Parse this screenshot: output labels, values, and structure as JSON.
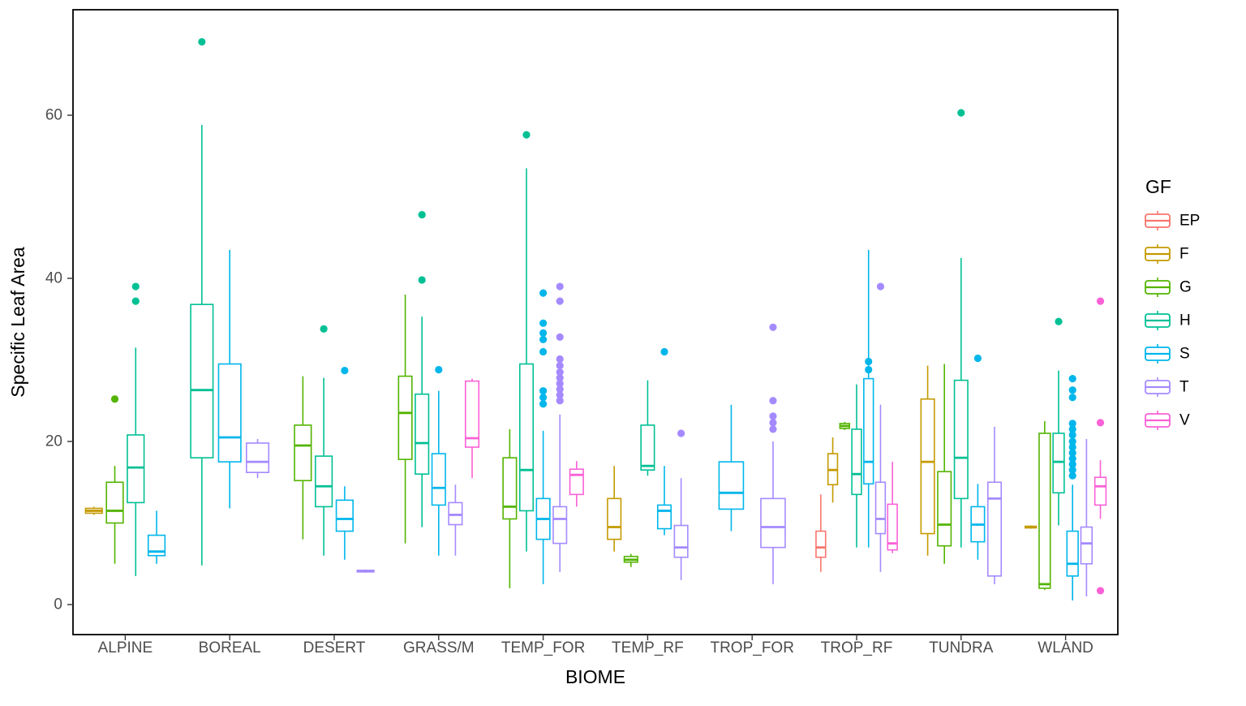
{
  "chart_data": {
    "type": "boxplot",
    "title": "",
    "xlabel": "BIOME",
    "ylabel": "Specific Leaf Area",
    "legend_title": "GF",
    "ylim": [
      -2,
      71
    ],
    "yticks": [
      0,
      20,
      40,
      60
    ],
    "grid": "off",
    "legend_position": "right",
    "categories": [
      "ALPINE",
      "BOREAL",
      "DESERT",
      "GRASS/M",
      "TEMP_FOR",
      "TEMP_RF",
      "TROP_FOR",
      "TROP_RF",
      "TUNDRA",
      "WLAND"
    ],
    "groups": [
      {
        "key": "EP",
        "label": "EP",
        "color": "#F8766D"
      },
      {
        "key": "F",
        "label": "F",
        "color": "#C49A00"
      },
      {
        "key": "G",
        "label": "G",
        "color": "#53B400"
      },
      {
        "key": "H",
        "label": "H",
        "color": "#00C094"
      },
      {
        "key": "S",
        "label": "S",
        "color": "#00B6EB"
      },
      {
        "key": "T",
        "label": "T",
        "color": "#A58AFF"
      },
      {
        "key": "V",
        "label": "V",
        "color": "#FB61D7"
      }
    ],
    "boxes": [
      {
        "biome": "ALPINE",
        "gf": "F",
        "low": 11,
        "q1": 11.2,
        "med": 11.5,
        "q3": 11.8,
        "high": 12,
        "out": []
      },
      {
        "biome": "ALPINE",
        "gf": "G",
        "low": 5,
        "q1": 10,
        "med": 11.5,
        "q3": 15,
        "high": 17,
        "out": [
          25.2
        ]
      },
      {
        "biome": "ALPINE",
        "gf": "H",
        "low": 3.5,
        "q1": 12.5,
        "med": 16.8,
        "q3": 20.8,
        "high": 31.5,
        "out": [
          37.2,
          39
        ]
      },
      {
        "biome": "ALPINE",
        "gf": "S",
        "low": 5,
        "q1": 6,
        "med": 6.5,
        "q3": 8.5,
        "high": 11.5,
        "out": []
      },
      {
        "biome": "BOREAL",
        "gf": "H",
        "low": 4.8,
        "q1": 18,
        "med": 26.3,
        "q3": 36.8,
        "high": 58.8,
        "out": [
          69
        ]
      },
      {
        "biome": "BOREAL",
        "gf": "S",
        "low": 11.8,
        "q1": 17.5,
        "med": 20.5,
        "q3": 29.5,
        "high": 43.5,
        "out": []
      },
      {
        "biome": "BOREAL",
        "gf": "T",
        "low": 15.5,
        "q1": 16.2,
        "med": 17.5,
        "q3": 19.8,
        "high": 20.3,
        "out": []
      },
      {
        "biome": "DESERT",
        "gf": "G",
        "low": 8,
        "q1": 15.2,
        "med": 19.5,
        "q3": 22,
        "high": 28,
        "out": []
      },
      {
        "biome": "DESERT",
        "gf": "H",
        "low": 6,
        "q1": 12,
        "med": 14.5,
        "q3": 18.2,
        "high": 27.8,
        "out": [
          33.8
        ]
      },
      {
        "biome": "DESERT",
        "gf": "S",
        "low": 5.5,
        "q1": 9,
        "med": 10.5,
        "q3": 12.8,
        "high": 14.5,
        "out": [
          28.7
        ]
      },
      {
        "biome": "DESERT",
        "gf": "T",
        "low": 3.9,
        "q1": 4,
        "med": 4.1,
        "q3": 4.2,
        "high": 4.3,
        "out": []
      },
      {
        "biome": "GRASS/M",
        "gf": "G",
        "low": 7.5,
        "q1": 17.8,
        "med": 23.5,
        "q3": 28,
        "high": 38,
        "out": []
      },
      {
        "biome": "GRASS/M",
        "gf": "H",
        "low": 9.5,
        "q1": 16,
        "med": 19.8,
        "q3": 25.8,
        "high": 35.3,
        "out": [
          39.8,
          47.8
        ]
      },
      {
        "biome": "GRASS/M",
        "gf": "S",
        "low": 6,
        "q1": 12.2,
        "med": 14.3,
        "q3": 18.5,
        "high": 26.2,
        "out": [
          28.8
        ]
      },
      {
        "biome": "GRASS/M",
        "gf": "T",
        "low": 6,
        "q1": 9.8,
        "med": 11,
        "q3": 12.5,
        "high": 14.7,
        "out": []
      },
      {
        "biome": "GRASS/M",
        "gf": "V",
        "low": 15.5,
        "q1": 19.3,
        "med": 20.4,
        "q3": 27.4,
        "high": 27.7,
        "out": []
      },
      {
        "biome": "TEMP_FOR",
        "gf": "G",
        "low": 2,
        "q1": 10.5,
        "med": 12,
        "q3": 18,
        "high": 21.5,
        "out": []
      },
      {
        "biome": "TEMP_FOR",
        "gf": "H",
        "low": 6.5,
        "q1": 11.5,
        "med": 16.5,
        "q3": 29.5,
        "high": 53.5,
        "out": [
          57.6
        ]
      },
      {
        "biome": "TEMP_FOR",
        "gf": "S",
        "low": 2.5,
        "q1": 8,
        "med": 10.5,
        "q3": 13,
        "high": 21.3,
        "out": [
          24.6,
          25.4,
          26.2,
          31,
          32.5,
          33.3,
          34.5,
          38.2
        ]
      },
      {
        "biome": "TEMP_FOR",
        "gf": "T",
        "low": 4,
        "q1": 7.5,
        "med": 10.5,
        "q3": 12,
        "high": 23.3,
        "out": [
          25,
          25.7,
          26.4,
          27.1,
          27.8,
          28.5,
          29.3,
          30.1,
          32.8,
          37.2,
          39
        ]
      },
      {
        "biome": "TEMP_FOR",
        "gf": "V",
        "low": 12,
        "q1": 13.5,
        "med": 15.9,
        "q3": 16.6,
        "high": 17.6,
        "out": []
      },
      {
        "biome": "TEMP_RF",
        "gf": "F",
        "low": 6.5,
        "q1": 8,
        "med": 9.5,
        "q3": 13,
        "high": 17,
        "out": []
      },
      {
        "biome": "TEMP_RF",
        "gf": "G",
        "low": 4.6,
        "q1": 5.2,
        "med": 5.5,
        "q3": 5.9,
        "high": 6.2,
        "out": []
      },
      {
        "biome": "TEMP_RF",
        "gf": "H",
        "low": 15.8,
        "q1": 16.5,
        "med": 17,
        "q3": 22,
        "high": 27.5,
        "out": []
      },
      {
        "biome": "TEMP_RF",
        "gf": "S",
        "low": 8.5,
        "q1": 9.3,
        "med": 11.5,
        "q3": 12.2,
        "high": 17,
        "out": [
          31
        ]
      },
      {
        "biome": "TEMP_RF",
        "gf": "T",
        "low": 3,
        "q1": 5.8,
        "med": 7,
        "q3": 9.7,
        "high": 15.5,
        "out": [
          21
        ]
      },
      {
        "biome": "TROP_FOR",
        "gf": "S",
        "low": 9,
        "q1": 11.7,
        "med": 13.7,
        "q3": 17.5,
        "high": 24.5,
        "out": []
      },
      {
        "biome": "TROP_FOR",
        "gf": "T",
        "low": 2.5,
        "q1": 7,
        "med": 9.5,
        "q3": 13,
        "high": 20,
        "out": [
          21.5,
          22.3,
          23.1,
          25,
          34
        ]
      },
      {
        "biome": "TROP_RF",
        "gf": "EP",
        "low": 4,
        "q1": 5.8,
        "med": 7,
        "q3": 9,
        "high": 13.5,
        "out": []
      },
      {
        "biome": "TROP_RF",
        "gf": "F",
        "low": 12.5,
        "q1": 14.7,
        "med": 16.5,
        "q3": 18.5,
        "high": 20.5,
        "out": []
      },
      {
        "biome": "TROP_RF",
        "gf": "G",
        "low": 21.4,
        "q1": 21.6,
        "med": 21.9,
        "q3": 22.2,
        "high": 22.4,
        "out": []
      },
      {
        "biome": "TROP_RF",
        "gf": "H",
        "low": 7,
        "q1": 13.5,
        "med": 16,
        "q3": 21.5,
        "high": 27,
        "out": []
      },
      {
        "biome": "TROP_RF",
        "gf": "S",
        "low": 7,
        "q1": 14.8,
        "med": 17.5,
        "q3": 27.7,
        "high": 43.5,
        "out": [
          28.8,
          29.8
        ]
      },
      {
        "biome": "TROP_RF",
        "gf": "T",
        "low": 4,
        "q1": 8.7,
        "med": 10.5,
        "q3": 15,
        "high": 24.5,
        "out": [
          39
        ]
      },
      {
        "biome": "TROP_RF",
        "gf": "V",
        "low": 6.3,
        "q1": 6.7,
        "med": 7.5,
        "q3": 12.3,
        "high": 17.5,
        "out": []
      },
      {
        "biome": "TUNDRA",
        "gf": "F",
        "low": 6,
        "q1": 8.7,
        "med": 17.5,
        "q3": 25.2,
        "high": 29.3,
        "out": []
      },
      {
        "biome": "TUNDRA",
        "gf": "G",
        "low": 5,
        "q1": 7.2,
        "med": 9.8,
        "q3": 16.3,
        "high": 29.5,
        "out": []
      },
      {
        "biome": "TUNDRA",
        "gf": "H",
        "low": 7,
        "q1": 13,
        "med": 18,
        "q3": 27.5,
        "high": 42.5,
        "out": [
          60.3
        ]
      },
      {
        "biome": "TUNDRA",
        "gf": "S",
        "low": 5.5,
        "q1": 7.7,
        "med": 9.8,
        "q3": 12,
        "high": 14.8,
        "out": [
          30.2
        ]
      },
      {
        "biome": "TUNDRA",
        "gf": "T",
        "low": 2.5,
        "q1": 3.5,
        "med": 13,
        "q3": 15,
        "high": 21.8,
        "out": []
      },
      {
        "biome": "WLAND",
        "gf": "F",
        "low": 9.3,
        "q1": 9.4,
        "med": 9.5,
        "q3": 9.6,
        "high": 9.7,
        "out": []
      },
      {
        "biome": "WLAND",
        "gf": "G",
        "low": 1.8,
        "q1": 2,
        "med": 2.5,
        "q3": 21,
        "high": 22.5,
        "out": []
      },
      {
        "biome": "WLAND",
        "gf": "H",
        "low": 9.7,
        "q1": 13.7,
        "med": 17.5,
        "q3": 21,
        "high": 28.7,
        "out": [
          34.7
        ]
      },
      {
        "biome": "WLAND",
        "gf": "S",
        "low": 0.5,
        "q1": 3.5,
        "med": 5,
        "q3": 9,
        "high": 14.7,
        "out": [
          15.8,
          16.5,
          17.2,
          17.9,
          18.6,
          19.3,
          20,
          20.8,
          21.5,
          22.2,
          25.4,
          26.3,
          27.7
        ]
      },
      {
        "biome": "WLAND",
        "gf": "T",
        "low": 1,
        "q1": 5,
        "med": 7.5,
        "q3": 9.5,
        "high": 20.3,
        "out": []
      },
      {
        "biome": "WLAND",
        "gf": "V",
        "low": 10.5,
        "q1": 12.2,
        "med": 14.5,
        "q3": 15.6,
        "high": 17.7,
        "out": [
          1.7,
          22.3,
          37.2
        ]
      }
    ]
  }
}
